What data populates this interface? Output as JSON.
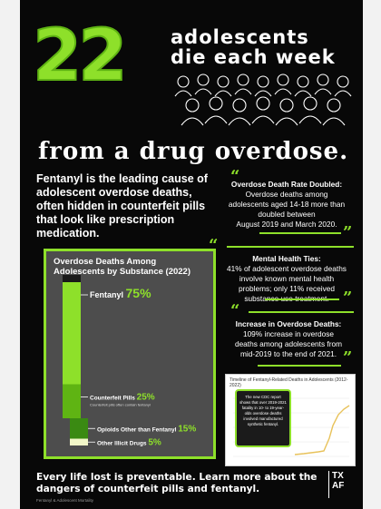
{
  "hero": {
    "number": "22",
    "headline_line1": "adolescents",
    "headline_line2": "die each week",
    "subheadline": "from a drug overdose."
  },
  "lead_text": "Fentanyl is the leading cause of adolescent overdose deaths, often hidden in counterfeit pills that look like prescription medication.",
  "quotes": [
    {
      "title": "Overdose Death Rate Doubled:",
      "lines": [
        "Overdose deaths among",
        "adolescents aged 14-18 more than",
        "doubled between",
        "August 2019 and March 2020."
      ]
    },
    {
      "title": "Mental Health Ties:",
      "lines": [
        "41% of adolescent overdose deaths",
        "involve known mental health",
        "problems; only 11% received",
        "substance use treatment."
      ]
    },
    {
      "title": "Increase in Overdose Deaths:",
      "lines": [
        "109% increase in overdose",
        "deaths among adolescents from",
        "mid-2019 to the end of 2021."
      ]
    }
  ],
  "chart_data": {
    "type": "bar",
    "title": "Overdose Deaths Among Adolescents by Substance (2022)",
    "orientation": "stacked-vertical",
    "categories": [
      "Fentanyl",
      "Counterfeit Pills",
      "Opioids Other than Fentanyl",
      "Other Illicit Drugs"
    ],
    "values": [
      75,
      25,
      15,
      5
    ],
    "unit": "%",
    "labels": [
      "Fentanyl 75%",
      "Counterfeit Pills 25%",
      "Opioids Other than Fentanyl 15%",
      "Other Illicit Drugs 5%"
    ],
    "footnote": "Counterfeit pills often contain fentanyl",
    "colors": [
      "#8ee02a",
      "#5fb413",
      "#3a8a12",
      "#f2f7c8"
    ]
  },
  "inset": {
    "title": "Timeline of Fentanyl-Related Deaths in Adolescents (2012-2022)",
    "callout": "The new CDC report shows that over 2019-2021 fatality in 10- to 19-year-olds overdose deaths involved manufactured synthetic fentanyl.",
    "line_color": "#e8c25a"
  },
  "footer": {
    "cta": "Every life lost is preventable. Learn more about the dangers of counterfeit pills and fentanyl.",
    "logo_line1": "TX",
    "logo_line2": "AF",
    "source": "Fentanyl & Adolescent Mortality"
  }
}
